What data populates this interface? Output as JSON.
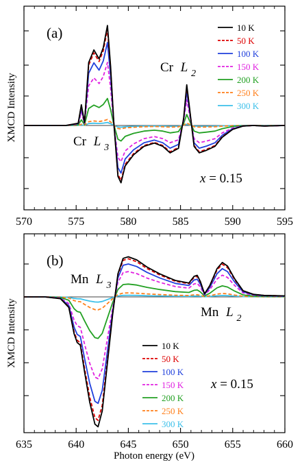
{
  "figure": {
    "ylabel": "XMCD Intensity",
    "xlabel": "Photon energy (eV)"
  },
  "legend": [
    {
      "label": "10 K",
      "color": "#000000",
      "dash": "solid"
    },
    {
      "label": "50 K",
      "color": "#dd0000",
      "dash": "dashed"
    },
    {
      "label": "100 K",
      "color": "#1f3fdc",
      "dash": "solid"
    },
    {
      "label": "150 K",
      "color": "#e020e0",
      "dash": "dashed"
    },
    {
      "label": "200 K",
      "color": "#22a022",
      "dash": "solid"
    },
    {
      "label": "250 K",
      "color": "#ff7f1a",
      "dash": "dashed"
    },
    {
      "label": "300 K",
      "color": "#3cc0ea",
      "dash": "solid"
    }
  ],
  "chart_data": [
    {
      "type": "line",
      "panel_label": "(a)",
      "xlim": [
        570,
        595
      ],
      "ylim": [
        -1.05,
        1.55
      ],
      "xticks": [
        570,
        575,
        580,
        585,
        590,
        595
      ],
      "yticks_unlabeled": true,
      "annotations": {
        "l2_elem": "Cr",
        "l2_edge": "L",
        "l2_sub": "2",
        "l3_elem": "Cr",
        "l3_edge": "L",
        "l3_sub": "3",
        "x_var": "x",
        "x_eq": " = 0.15"
      },
      "series": [
        {
          "name": "10 K",
          "scale": 1.0
        },
        {
          "name": "50 K",
          "scale": 0.96
        },
        {
          "name": "100 K",
          "scale": 0.83
        },
        {
          "name": "150 K",
          "scale": 0.63
        },
        {
          "name": "200 K",
          "scale": 0.27
        },
        {
          "name": "250 K",
          "scale": 0.06
        },
        {
          "name": "300 K",
          "scale": 0.03
        }
      ],
      "base_curve": [
        [
          570,
          0
        ],
        [
          574,
          0
        ],
        [
          575.2,
          0.03
        ],
        [
          575.5,
          0.28
        ],
        [
          575.8,
          0.04
        ],
        [
          576.2,
          0.85
        ],
        [
          576.7,
          1.02
        ],
        [
          577.2,
          0.9
        ],
        [
          577.6,
          1.05
        ],
        [
          578.0,
          1.35
        ],
        [
          578.3,
          0.8
        ],
        [
          578.6,
          0.05
        ],
        [
          579.0,
          -0.78
        ],
        [
          579.3,
          -0.88
        ],
        [
          579.7,
          -0.62
        ],
        [
          580.5,
          -0.45
        ],
        [
          581.5,
          -0.32
        ],
        [
          582.5,
          -0.27
        ],
        [
          583.3,
          -0.32
        ],
        [
          584.0,
          -0.42
        ],
        [
          584.8,
          -0.35
        ],
        [
          585.3,
          0.1
        ],
        [
          585.6,
          0.55
        ],
        [
          585.85,
          0.25
        ],
        [
          586.3,
          -0.32
        ],
        [
          586.8,
          -0.42
        ],
        [
          587.5,
          -0.38
        ],
        [
          588.3,
          -0.32
        ],
        [
          589.0,
          -0.18
        ],
        [
          590.0,
          -0.06
        ],
        [
          591.0,
          -0.01
        ],
        [
          592.0,
          0.0
        ],
        [
          593.0,
          -0.01
        ],
        [
          595,
          0.0
        ]
      ]
    },
    {
      "type": "line",
      "panel_label": "(b)",
      "xlim": [
        635,
        660
      ],
      "ylim": [
        -1.5,
        1.12
      ],
      "xticks": [
        635,
        640,
        645,
        650,
        655,
        660
      ],
      "yticks_unlabeled": true,
      "annotations": {
        "l3_elem": "Mn",
        "l3_edge": "L",
        "l3_sub": "3",
        "l2_elem": "Mn",
        "l2_edge": "L",
        "l2_sub": "2",
        "x_var": "x",
        "x_eq": " = 0.15"
      },
      "series": [
        {
          "name": "10 K",
          "scale": 1.0
        },
        {
          "name": "50 K",
          "scale": 0.95
        },
        {
          "name": "100 K",
          "scale": 0.82
        },
        {
          "name": "150 K",
          "scale": 0.63
        },
        {
          "name": "200 K",
          "scale": 0.32
        },
        {
          "name": "250 K",
          "scale": 0.1
        },
        {
          "name": "300 K",
          "scale": 0.04
        }
      ],
      "base_curve": [
        [
          635,
          0
        ],
        [
          637,
          0
        ],
        [
          638.5,
          -0.02
        ],
        [
          639.3,
          -0.12
        ],
        [
          639.8,
          -0.42
        ],
        [
          640.1,
          -0.52
        ],
        [
          640.4,
          -0.55
        ],
        [
          640.8,
          -0.85
        ],
        [
          641.3,
          -1.2
        ],
        [
          641.8,
          -1.45
        ],
        [
          642.1,
          -1.48
        ],
        [
          642.5,
          -1.3
        ],
        [
          643.0,
          -0.75
        ],
        [
          643.5,
          -0.2
        ],
        [
          644.0,
          0.45
        ],
        [
          644.5,
          0.75
        ],
        [
          645.0,
          0.78
        ],
        [
          645.8,
          0.72
        ],
        [
          646.8,
          0.58
        ],
        [
          648.0,
          0.45
        ],
        [
          649.5,
          0.32
        ],
        [
          650.8,
          0.27
        ],
        [
          651.3,
          0.4
        ],
        [
          651.6,
          0.42
        ],
        [
          651.9,
          0.3
        ],
        [
          652.3,
          0.06
        ],
        [
          652.8,
          0.22
        ],
        [
          653.5,
          0.55
        ],
        [
          654.0,
          0.67
        ],
        [
          654.5,
          0.6
        ],
        [
          655.2,
          0.35
        ],
        [
          656.0,
          0.12
        ],
        [
          657.0,
          0.05
        ],
        [
          658.0,
          0.03
        ],
        [
          660,
          0.02
        ]
      ]
    }
  ]
}
